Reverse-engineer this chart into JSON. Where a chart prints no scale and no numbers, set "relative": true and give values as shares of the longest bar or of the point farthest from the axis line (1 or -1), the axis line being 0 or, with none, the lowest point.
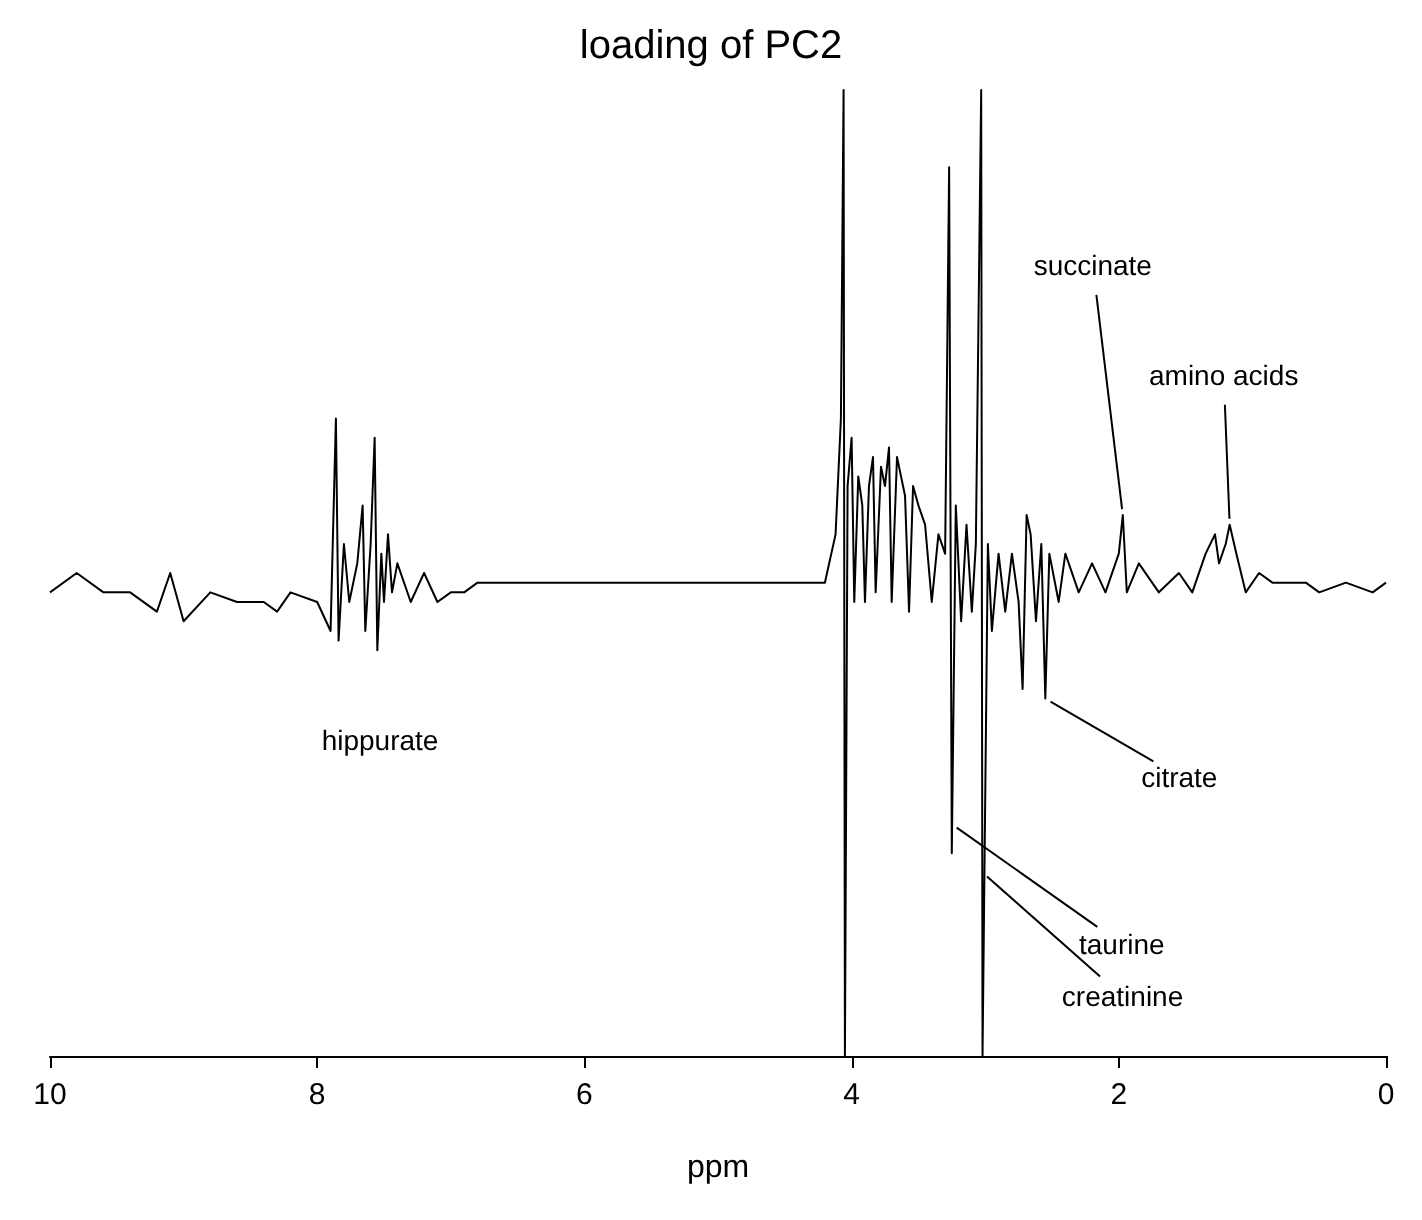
{
  "chart_data": {
    "type": "line",
    "title": "loading of PC2",
    "xlabel": "ppm",
    "relative": true,
    "xlim": [
      10,
      0
    ],
    "xticks": [
      10,
      8,
      6,
      4,
      2,
      0
    ],
    "grid": false,
    "marker": "none",
    "line_style": "solid",
    "series": [
      {
        "color": "#000000",
        "x": [
          10.0,
          9.8,
          9.6,
          9.4,
          9.2,
          9.1,
          9.0,
          8.8,
          8.6,
          8.4,
          8.3,
          8.2,
          8.0,
          7.9,
          7.86,
          7.84,
          7.8,
          7.76,
          7.7,
          7.66,
          7.64,
          7.6,
          7.57,
          7.55,
          7.52,
          7.5,
          7.47,
          7.44,
          7.4,
          7.3,
          7.2,
          7.1,
          7.0,
          6.9,
          6.8,
          5.2,
          4.2,
          4.12,
          4.08,
          4.06,
          4.05,
          4.03,
          4.0,
          3.98,
          3.95,
          3.92,
          3.9,
          3.87,
          3.84,
          3.82,
          3.78,
          3.75,
          3.72,
          3.7,
          3.66,
          3.63,
          3.6,
          3.57,
          3.54,
          3.5,
          3.45,
          3.4,
          3.35,
          3.3,
          3.27,
          3.25,
          3.22,
          3.18,
          3.14,
          3.1,
          3.07,
          3.03,
          3.02,
          2.98,
          2.95,
          2.9,
          2.85,
          2.8,
          2.75,
          2.72,
          2.69,
          2.66,
          2.62,
          2.58,
          2.55,
          2.52,
          2.45,
          2.4,
          2.3,
          2.2,
          2.1,
          2.0,
          1.97,
          1.94,
          1.85,
          1.7,
          1.55,
          1.45,
          1.35,
          1.28,
          1.25,
          1.2,
          1.17,
          1.12,
          1.05,
          0.95,
          0.85,
          0.6,
          0.5,
          0.3,
          0.1,
          0.0
        ],
        "values": [
          0.48,
          0.5,
          0.48,
          0.48,
          0.46,
          0.5,
          0.45,
          0.48,
          0.47,
          0.47,
          0.46,
          0.48,
          0.47,
          0.44,
          0.66,
          0.43,
          0.53,
          0.47,
          0.51,
          0.57,
          0.44,
          0.53,
          0.64,
          0.42,
          0.52,
          0.47,
          0.54,
          0.48,
          0.51,
          0.47,
          0.5,
          0.47,
          0.48,
          0.48,
          0.49,
          0.49,
          0.49,
          0.54,
          0.66,
          1,
          0,
          0.59,
          0.64,
          0.47,
          0.6,
          0.57,
          0.47,
          0.59,
          0.62,
          0.48,
          0.61,
          0.59,
          0.63,
          0.47,
          0.62,
          0.6,
          0.58,
          0.46,
          0.59,
          0.57,
          0.55,
          0.47,
          0.54,
          0.52,
          0.92,
          0.21,
          0.57,
          0.45,
          0.55,
          0.46,
          0.53,
          1,
          0,
          0.53,
          0.44,
          0.52,
          0.46,
          0.52,
          0.47,
          0.38,
          0.56,
          0.54,
          0.45,
          0.53,
          0.37,
          0.52,
          0.47,
          0.52,
          0.48,
          0.51,
          0.48,
          0.52,
          0.56,
          0.48,
          0.51,
          0.48,
          0.5,
          0.48,
          0.52,
          0.54,
          0.51,
          0.53,
          0.55,
          0.52,
          0.48,
          0.5,
          0.49,
          0.49,
          0.48,
          0.49,
          0.48,
          0.49
        ]
      }
    ],
    "annotations": [
      "hippurate",
      {
        "text": "succinate",
        "x": 1.97,
        "y": 0.56
      },
      {
        "text": "amino acids",
        "x": 1.17,
        "y": 0.55
      },
      {
        "text": "citrate",
        "x": 2.55,
        "y": 0.37
      },
      {
        "text": "taurine",
        "x": 3.25,
        "y": 0.24
      },
      {
        "text": "creatinine",
        "x": 3.02,
        "y": 0.19
      }
    ]
  }
}
